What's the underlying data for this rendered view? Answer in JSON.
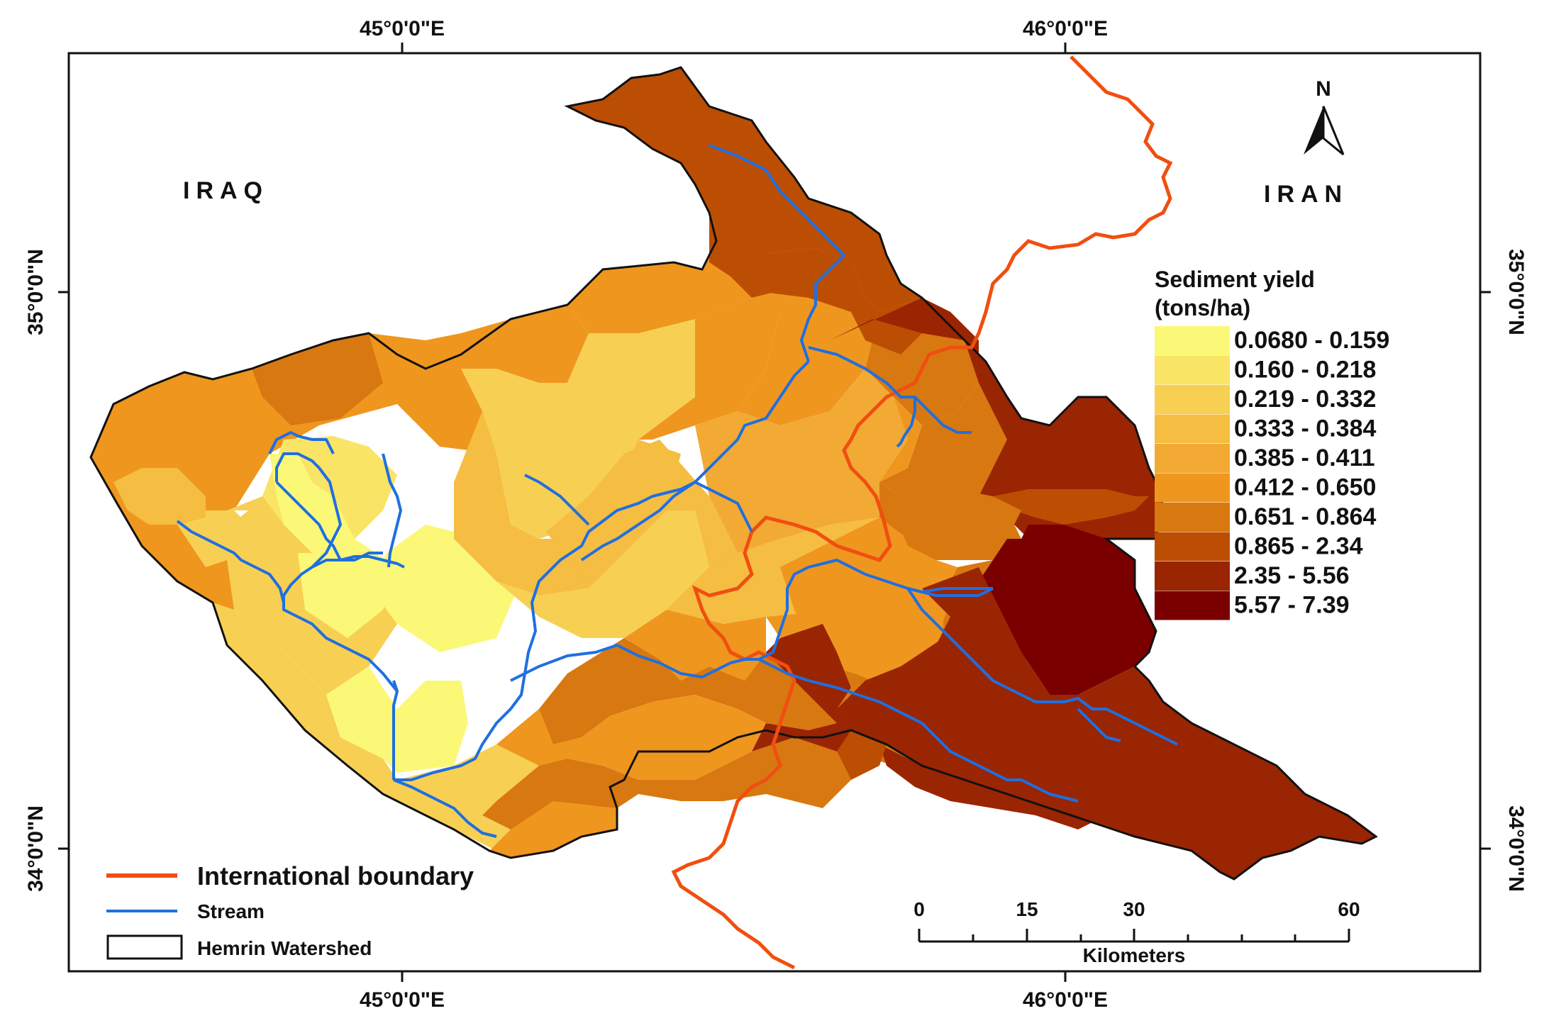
{
  "coordinates": {
    "top": [
      "45°0'0\"E",
      "46°0'0\"E"
    ],
    "bottom": [
      "45°0'0\"E",
      "46°0'0\"E"
    ],
    "left": [
      "35°0'0\"N",
      "34°0'0\"N"
    ],
    "right": [
      "35°0'0\"N",
      "34°0'0\"N"
    ]
  },
  "countries": {
    "west": "IRAQ",
    "east": "IRAN"
  },
  "north_arrow": {
    "label": "N"
  },
  "legend": {
    "title_line1": "Sediment yield",
    "title_line2": "(tons/ha)",
    "classes": [
      {
        "label": "0.0680 - 0.159",
        "color": "#fbf877"
      },
      {
        "label": "0.160 - 0.218",
        "color": "#f9e466"
      },
      {
        "label": "0.219 - 0.332",
        "color": "#f7d053"
      },
      {
        "label": "0.333 - 0.384",
        "color": "#f5bd42"
      },
      {
        "label": "0.385 - 0.411",
        "color": "#f2aa34"
      },
      {
        "label": "0.412 - 0.650",
        "color": "#ef961f"
      },
      {
        "label": "0.651 - 0.864",
        "color": "#d87810"
      },
      {
        "label": "0.865 - 2.34",
        "color": "#bc4e04"
      },
      {
        "label": "2.35 - 5.56",
        "color": "#9a2503"
      },
      {
        "label": "5.57 - 7.39",
        "color": "#7a0000"
      }
    ]
  },
  "key": {
    "boundary": {
      "label": "International boundary",
      "color": "#f04f10"
    },
    "stream": {
      "label": "Stream",
      "color": "#1f6fe0"
    },
    "watershed": {
      "label": "Hemrin Watershed"
    }
  },
  "scale_bar": {
    "ticks": [
      "0",
      "15",
      "30",
      "60"
    ],
    "unit": "Kilometers"
  }
}
